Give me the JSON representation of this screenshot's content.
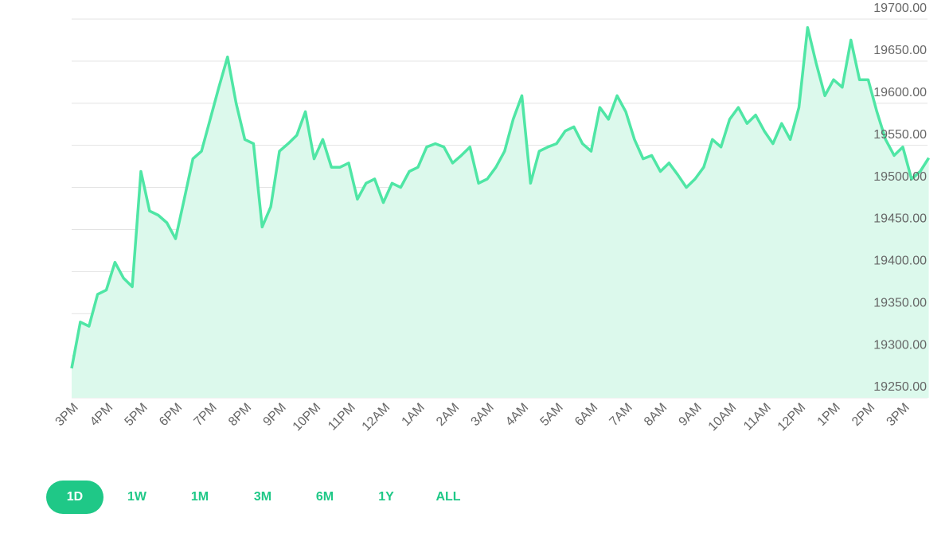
{
  "chart_data": {
    "type": "area",
    "categories": [
      "3PM",
      null,
      null,
      null,
      "4PM",
      null,
      null,
      null,
      "5PM",
      null,
      null,
      null,
      "6PM",
      null,
      null,
      null,
      "7PM",
      null,
      null,
      null,
      "8PM",
      null,
      null,
      null,
      "9PM",
      null,
      null,
      null,
      "10PM",
      null,
      null,
      null,
      "11PM",
      null,
      null,
      null,
      "12AM",
      null,
      null,
      null,
      "1AM",
      null,
      null,
      null,
      "2AM",
      null,
      null,
      null,
      "3AM",
      null,
      null,
      null,
      "4AM",
      null,
      null,
      null,
      "5AM",
      null,
      null,
      null,
      "6AM",
      null,
      null,
      null,
      "7AM",
      null,
      null,
      null,
      "8AM",
      null,
      null,
      null,
      "9AM",
      null,
      null,
      null,
      "10AM",
      null,
      null,
      null,
      "11AM",
      null,
      null,
      null,
      "12PM",
      null,
      null,
      null,
      "1PM",
      null,
      null,
      null,
      "2PM",
      null,
      null,
      null,
      "3PM",
      null,
      null,
      null
    ],
    "values": [
      19285,
      19340,
      19335,
      19373,
      19378,
      19411,
      19392,
      19382,
      19519,
      19472,
      19467,
      19458,
      19439,
      19486,
      19534,
      19543,
      19581,
      19619,
      19655,
      19600,
      19557,
      19552,
      19453,
      19477,
      19543,
      19552,
      19562,
      19590,
      19534,
      19557,
      19524,
      19524,
      19529,
      19486,
      19505,
      19510,
      19482,
      19505,
      19500,
      19519,
      19524,
      19548,
      19552,
      19548,
      19529,
      19538,
      19548,
      19505,
      19510,
      19524,
      19543,
      19581,
      19609,
      19505,
      19543,
      19548,
      19552,
      19567,
      19572,
      19552,
      19543,
      19595,
      19581,
      19609,
      19590,
      19557,
      19534,
      19538,
      19519,
      19529,
      19515,
      19500,
      19510,
      19524,
      19557,
      19548,
      19581,
      19595,
      19576,
      19586,
      19567,
      19552,
      19576,
      19557,
      19595,
      19690,
      19647,
      19609,
      19628,
      19619,
      19675,
      19628,
      19628,
      19590,
      19557,
      19538,
      19548,
      19510,
      19519,
      19535
    ],
    "color": "#4fe6a5",
    "fill": "#dcf9ec",
    "ylim": [
      19250,
      19700
    ],
    "yticks": [
      {
        "value": 19250,
        "label": "19250.00"
      },
      {
        "value": 19300,
        "label": "19300.00"
      },
      {
        "value": 19350,
        "label": "19350.00"
      },
      {
        "value": 19400,
        "label": "19400.00"
      },
      {
        "value": 19450,
        "label": "19450.00"
      },
      {
        "value": 19500,
        "label": "19500.00"
      },
      {
        "value": 19550,
        "label": "19550.00"
      },
      {
        "value": 19600,
        "label": "19600.00"
      },
      {
        "value": 19650,
        "label": "19650.00"
      },
      {
        "value": 19700,
        "label": "19700.00"
      }
    ],
    "grid": true
  },
  "controls": {
    "ranges": [
      "1D",
      "1W",
      "1M",
      "3M",
      "6M",
      "1Y",
      "ALL"
    ],
    "selected": 0
  }
}
